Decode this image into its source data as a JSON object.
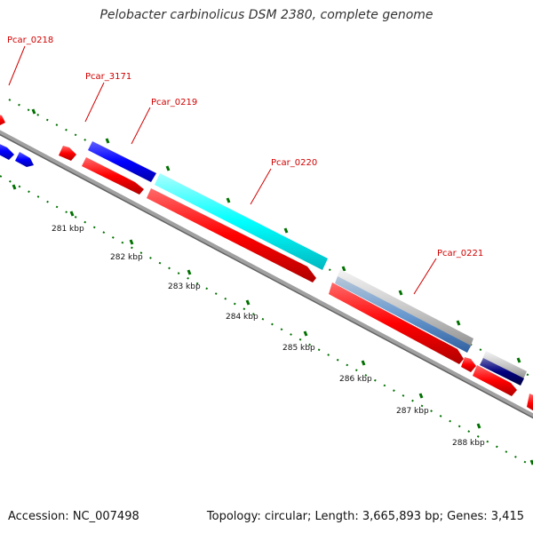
{
  "title": "Pelobacter carbinolicus DSM 2380, complete genome",
  "footer": {
    "accession": "Accession: NC_007498",
    "summary": "Topology: circular; Length: 3,665,893 bp; Genes: 3,415"
  },
  "gene_labels": [
    "Pcar_0218",
    "Pcar_3171",
    "Pcar_0219",
    "Pcar_0220",
    "Pcar_0221"
  ],
  "kbp_labels": [
    "281 kbp",
    "282 kbp",
    "283 kbp",
    "284 kbp",
    "285 kbp",
    "286 kbp",
    "287 kbp",
    "288 kbp"
  ],
  "colors": {
    "red": "#ff0000",
    "blue": "#0000ff",
    "cyan": "#00ffff",
    "steel": "#5a8fd0",
    "grey": "#c8c8c8",
    "navy": "#000080",
    "tick": "#007000",
    "backbone": "#808080",
    "label": "#d10000"
  }
}
